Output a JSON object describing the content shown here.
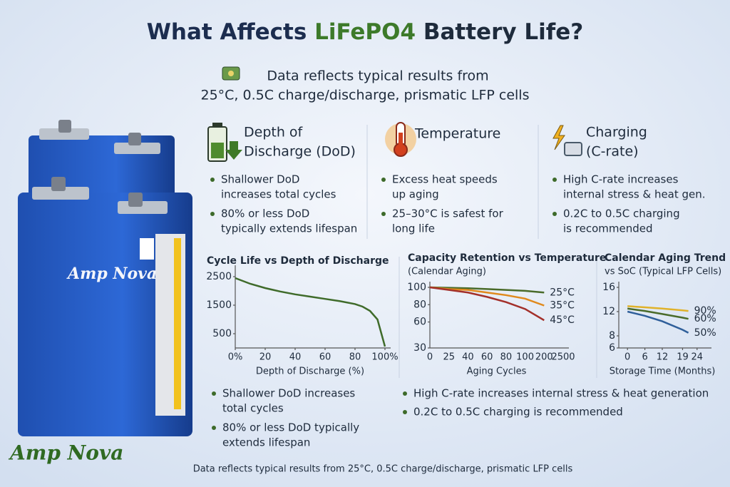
{
  "header": {
    "title_parts": [
      "What Affects ",
      "LiFePO4",
      " Battery Life?"
    ],
    "note": [
      "Data reflects typical results from",
      "25°C, 0.5C charge/discharge, prismatic LFP cells"
    ]
  },
  "features": [
    {
      "title": [
        "Depth of",
        "Discharge (DoD)"
      ],
      "bullets": [
        [
          "Shallower DoD",
          "increases total cycles"
        ],
        [
          "80% or less DoD",
          "typically extends lifespan"
        ]
      ]
    },
    {
      "title": [
        "Temperature"
      ],
      "bullets": [
        [
          "Excess heat speeds",
          "up aging"
        ],
        [
          "25–30°C is safest for",
          "long life"
        ]
      ]
    },
    {
      "title": [
        "Charging",
        "(C-rate)"
      ],
      "bullets": [
        [
          "High C-rate increases",
          "internal stress & heat gen."
        ],
        [
          "0.2C to 0.5C charging",
          "is recommended"
        ]
      ]
    }
  ],
  "battery": {
    "label": "Amp Nova"
  },
  "brand": "Amp Nova",
  "chart_data": [
    {
      "type": "line",
      "title": "Cycle Life vs Depth of Discharge",
      "x_label": "Depth of Discharge (%)",
      "x": [
        0,
        10,
        20,
        30,
        40,
        50,
        60,
        70,
        80,
        85,
        90,
        95,
        100
      ],
      "values": [
        2450,
        2250,
        2100,
        1980,
        1880,
        1800,
        1720,
        1640,
        1540,
        1450,
        1300,
        1000,
        50
      ],
      "color": "#3f6b2a",
      "xlim": [
        0,
        100
      ],
      "xticks": [
        {
          "value": 0,
          "label": "0%"
        },
        20,
        40,
        60,
        80,
        {
          "value": 100,
          "label": "100%"
        }
      ],
      "ylim": [
        0,
        2700
      ],
      "yticks": [
        2500,
        1500,
        500
      ]
    },
    {
      "type": "line",
      "title": "Capacity Retention vs Temperature",
      "subtitle": "(Calendar Aging)",
      "x_label": "Aging Cycles",
      "categories": [
        "0",
        "25",
        "40",
        "60",
        "80",
        "100",
        "200",
        "2500"
      ],
      "series": [
        {
          "name": "25°C",
          "color": "#4a6b2a",
          "values": [
            100,
            99.5,
            99,
            98,
            97,
            96,
            94,
            null
          ]
        },
        {
          "name": "35°C",
          "color": "#e08a1e",
          "values": [
            100,
            98,
            97,
            94,
            91,
            87,
            79,
            null
          ]
        },
        {
          "name": "45°C",
          "color": "#a3302a",
          "values": [
            100,
            97,
            94,
            89,
            83,
            75,
            62,
            null
          ]
        }
      ],
      "ylim": [
        30,
        100
      ],
      "yticks": [
        100,
        80,
        60,
        30
      ]
    },
    {
      "type": "line",
      "title": "Calendar Aging Trend",
      "subtitle": "vs SoC (Typical LFP Cells)",
      "x_label": "Storage Time (Months)",
      "x": [
        0,
        6,
        12,
        19,
        21
      ],
      "series": [
        {
          "name": "90%",
          "color": "#e0b22a",
          "values": [
            12.9,
            12.7,
            12.5,
            12.2,
            12.1
          ]
        },
        {
          "name": "60%",
          "color": "#4a6b2a",
          "values": [
            12.5,
            12.1,
            11.6,
            11.0,
            10.8
          ]
        },
        {
          "name": "50%",
          "color": "#2f5f9a",
          "values": [
            12.0,
            11.3,
            10.4,
            9.0,
            8.5
          ]
        }
      ],
      "xlim": [
        -3,
        27
      ],
      "xticks": [
        0,
        6,
        12,
        19,
        24
      ],
      "ylim": [
        6,
        16
      ],
      "yticks": [
        16,
        12,
        8,
        6
      ]
    }
  ],
  "bottom": {
    "left": [
      [
        "Shallower DoD increases",
        "total cycles"
      ],
      [
        "80% or less DoD typically",
        "extends lifespan"
      ]
    ],
    "right": [
      [
        "High C-rate increases internal stress & heat generation"
      ],
      [
        "0.2C to 0.5C charging is recommended"
      ]
    ]
  },
  "footer": "Data reflects typical results from 25°C, 0.5C charge/discharge, prismatic LFP cells"
}
